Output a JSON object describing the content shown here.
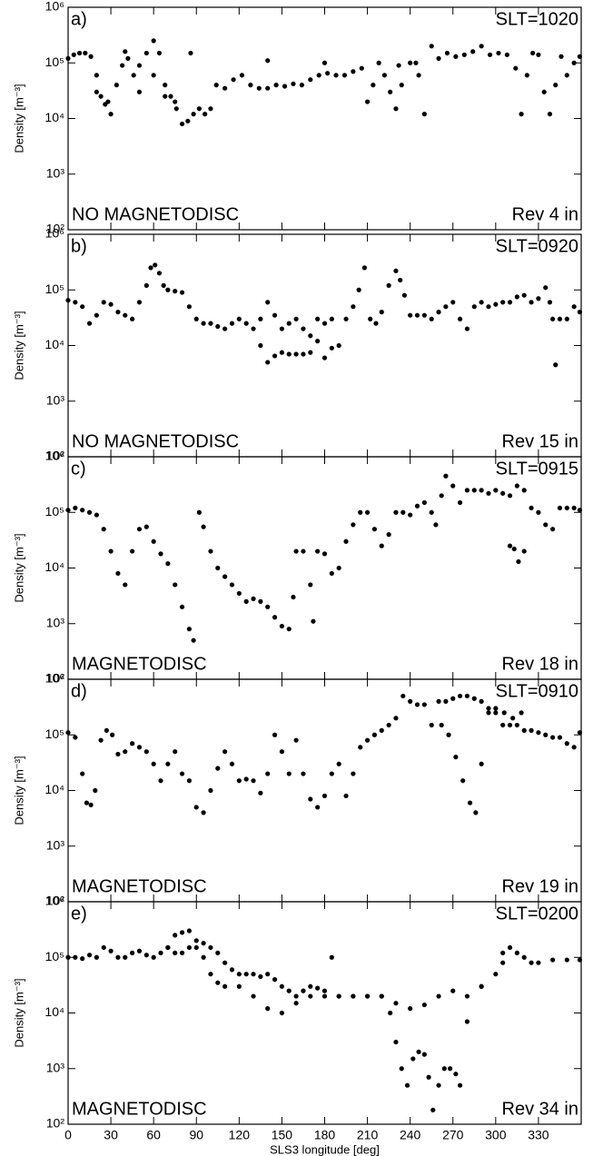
{
  "chart_data": [
    {
      "type": "scatter",
      "panel_label": "a)",
      "slt": "SLT=1020",
      "disc_label": "NO MAGNETODISC",
      "rev_label": "Rev 4 in",
      "ylabel": "Density [m⁻³]",
      "color": "#000000",
      "log_scale": true,
      "xlim": [
        0,
        360
      ],
      "xticks": [
        0,
        30,
        60,
        90,
        120,
        150,
        180,
        210,
        240,
        270,
        300,
        330
      ],
      "ylim": [
        100,
        1000000
      ],
      "yticks": [
        {
          "value": 100,
          "label": "10²"
        },
        {
          "value": 1000,
          "label": "10³"
        },
        {
          "value": 10000,
          "label": "10⁴"
        },
        {
          "value": 100000,
          "label": "10⁵"
        },
        {
          "value": 1000000,
          "label": "10⁶"
        }
      ],
      "x": [
        0,
        4,
        8,
        12,
        16,
        20,
        23,
        26,
        30,
        34,
        38,
        42,
        46,
        50,
        55,
        60,
        64,
        68,
        72,
        76,
        80,
        84,
        88,
        92,
        96,
        100,
        104,
        110,
        116,
        122,
        128,
        134,
        140,
        146,
        152,
        158,
        164,
        170,
        176,
        182,
        188,
        194,
        200,
        206,
        210,
        214,
        218,
        222,
        226,
        230,
        234,
        240,
        246,
        250,
        255,
        260,
        266,
        272,
        278,
        284,
        290,
        296,
        302,
        308,
        314,
        318,
        322,
        326,
        330,
        334,
        338,
        342,
        346,
        350,
        355,
        359,
        20,
        28,
        40,
        50,
        60,
        68,
        75,
        86,
        140,
        180,
        232,
        244
      ],
      "values": [
        120000,
        140000,
        150000,
        150000,
        130000,
        60000,
        25000,
        18000,
        12000,
        40000,
        90000,
        120000,
        60000,
        30000,
        150000,
        250000,
        150000,
        40000,
        25000,
        15000,
        8000,
        9000,
        12000,
        15000,
        12000,
        15000,
        40000,
        35000,
        50000,
        60000,
        40000,
        35000,
        35000,
        40000,
        38000,
        42000,
        40000,
        50000,
        60000,
        65000,
        60000,
        60000,
        70000,
        80000,
        20000,
        40000,
        100000,
        60000,
        30000,
        15000,
        40000,
        100000,
        60000,
        12000,
        200000,
        120000,
        150000,
        130000,
        140000,
        160000,
        200000,
        140000,
        150000,
        140000,
        80000,
        12000,
        60000,
        150000,
        140000,
        30000,
        12000,
        40000,
        130000,
        60000,
        100000,
        130000,
        30000,
        20000,
        160000,
        90000,
        60000,
        25000,
        20000,
        150000,
        110000,
        100000,
        90000,
        100000
      ]
    },
    {
      "type": "scatter",
      "panel_label": "b)",
      "slt": "SLT=0920",
      "disc_label": "NO MAGNETODISC",
      "rev_label": "Rev 15 in",
      "ylabel": "Density [m⁻³]",
      "color": "#000000",
      "log_scale": true,
      "xlim": [
        0,
        360
      ],
      "xticks": [
        0,
        30,
        60,
        90,
        120,
        150,
        180,
        210,
        240,
        270,
        300,
        330
      ],
      "ylim": [
        100,
        1000000
      ],
      "yticks": [
        {
          "value": 100,
          "label": "10²"
        },
        {
          "value": 1000,
          "label": "10³"
        },
        {
          "value": 10000,
          "label": "10⁴"
        },
        {
          "value": 100000,
          "label": "10⁵"
        },
        {
          "value": 1000000,
          "label": "10⁶"
        }
      ],
      "x": [
        0,
        5,
        10,
        15,
        20,
        25,
        30,
        35,
        40,
        45,
        50,
        55,
        58,
        61,
        64,
        67,
        70,
        75,
        80,
        85,
        90,
        95,
        100,
        105,
        110,
        115,
        120,
        125,
        130,
        135,
        140,
        145,
        150,
        155,
        160,
        165,
        170,
        175,
        180,
        185,
        190,
        195,
        200,
        204,
        208,
        212,
        216,
        220,
        225,
        230,
        233,
        236,
        240,
        245,
        250,
        255,
        260,
        265,
        270,
        275,
        280,
        285,
        290,
        295,
        300,
        305,
        310,
        315,
        320,
        325,
        330,
        335,
        338,
        340,
        342,
        345,
        350,
        355,
        359,
        135,
        140,
        145,
        150,
        155,
        160,
        165,
        170,
        175,
        180,
        185
      ],
      "values": [
        65000,
        60000,
        50000,
        25000,
        35000,
        60000,
        55000,
        40000,
        35000,
        30000,
        60000,
        120000,
        250000,
        280000,
        200000,
        120000,
        100000,
        95000,
        90000,
        50000,
        30000,
        25000,
        25000,
        22000,
        20000,
        25000,
        30000,
        25000,
        20000,
        30000,
        60000,
        35000,
        20000,
        25000,
        30000,
        20000,
        15000,
        12000,
        25000,
        30000,
        10000,
        30000,
        50000,
        100000,
        250000,
        30000,
        25000,
        40000,
        120000,
        220000,
        150000,
        80000,
        35000,
        35000,
        35000,
        30000,
        40000,
        50000,
        60000,
        30000,
        20000,
        50000,
        60000,
        50000,
        55000,
        60000,
        60000,
        75000,
        80000,
        60000,
        70000,
        110000,
        60000,
        30000,
        4500,
        30000,
        30000,
        50000,
        40000,
        10000,
        5000,
        6500,
        7500,
        7000,
        7000,
        7000,
        7500,
        30000,
        6000,
        9000
      ]
    },
    {
      "type": "scatter",
      "panel_label": "c)",
      "slt": "SLT=0915",
      "disc_label": "MAGNETODISC",
      "rev_label": "Rev 18 in",
      "ylabel": "Density [m⁻³]",
      "color": "#000000",
      "log_scale": true,
      "xlim": [
        0,
        360
      ],
      "xticks": [
        0,
        30,
        60,
        90,
        120,
        150,
        180,
        210,
        240,
        270,
        300,
        330
      ],
      "ylim": [
        100,
        1000000
      ],
      "yticks": [
        {
          "value": 100,
          "label": "10²"
        },
        {
          "value": 1000,
          "label": "10³"
        },
        {
          "value": 10000,
          "label": "10⁴"
        },
        {
          "value": 100000,
          "label": "10⁵"
        },
        {
          "value": 1000000,
          "label": "10⁶"
        }
      ],
      "x": [
        0,
        5,
        10,
        15,
        20,
        25,
        30,
        35,
        40,
        45,
        50,
        55,
        60,
        65,
        70,
        75,
        80,
        85,
        88,
        92,
        95,
        100,
        105,
        110,
        115,
        120,
        125,
        130,
        135,
        140,
        145,
        150,
        155,
        158,
        160,
        165,
        170,
        172,
        175,
        180,
        185,
        190,
        195,
        200,
        205,
        210,
        215,
        220,
        225,
        230,
        235,
        240,
        245,
        250,
        255,
        258,
        262,
        265,
        270,
        275,
        280,
        285,
        290,
        295,
        300,
        305,
        310,
        315,
        320,
        325,
        330,
        335,
        340,
        345,
        350,
        355,
        359,
        310,
        313,
        316,
        320
      ],
      "values": [
        110000,
        120000,
        110000,
        100000,
        90000,
        50000,
        20000,
        8000,
        5000,
        20000,
        50000,
        55000,
        30000,
        18000,
        12000,
        5000,
        2000,
        800,
        500,
        100000,
        55000,
        20000,
        10000,
        7000,
        5000,
        3500,
        2500,
        2800,
        2500,
        2000,
        1300,
        900,
        800,
        3000,
        20000,
        20000,
        5000,
        1100,
        20000,
        18000,
        8000,
        10000,
        30000,
        60000,
        100000,
        100000,
        50000,
        25000,
        40000,
        100000,
        100000,
        90000,
        130000,
        150000,
        100000,
        60000,
        200000,
        450000,
        300000,
        150000,
        250000,
        250000,
        250000,
        220000,
        250000,
        220000,
        200000,
        300000,
        250000,
        120000,
        100000,
        60000,
        50000,
        120000,
        120000,
        120000,
        110000,
        25000,
        22000,
        13000,
        20000
      ]
    },
    {
      "type": "scatter",
      "panel_label": "d)",
      "slt": "SLT=0910",
      "disc_label": "MAGNETODISC",
      "rev_label": "Rev 19 in",
      "ylabel": "Density [m⁻³]",
      "color": "#000000",
      "log_scale": true,
      "xlim": [
        0,
        360
      ],
      "xticks": [
        0,
        30,
        60,
        90,
        120,
        150,
        180,
        210,
        240,
        270,
        300,
        330
      ],
      "ylim": [
        100,
        1000000
      ],
      "yticks": [
        {
          "value": 100,
          "label": "10²"
        },
        {
          "value": 1000,
          "label": "10³"
        },
        {
          "value": 10000,
          "label": "10⁴"
        },
        {
          "value": 100000,
          "label": "10⁵"
        },
        {
          "value": 1000000,
          "label": "10⁶"
        }
      ],
      "x": [
        0,
        5,
        10,
        13,
        16,
        19,
        23,
        27,
        31,
        35,
        40,
        45,
        50,
        55,
        60,
        65,
        70,
        75,
        80,
        85,
        90,
        95,
        100,
        105,
        110,
        115,
        120,
        125,
        130,
        135,
        140,
        145,
        150,
        155,
        160,
        165,
        170,
        175,
        180,
        185,
        190,
        195,
        200,
        205,
        210,
        215,
        220,
        225,
        230,
        235,
        240,
        245,
        250,
        255,
        260,
        265,
        270,
        275,
        280,
        285,
        290,
        295,
        300,
        305,
        310,
        315,
        320,
        325,
        330,
        335,
        340,
        345,
        350,
        355,
        359,
        262,
        267,
        272,
        277,
        282,
        286,
        290,
        295,
        300,
        306,
        312,
        318
      ],
      "values": [
        110000,
        90000,
        20000,
        6000,
        5500,
        10000,
        80000,
        120000,
        100000,
        45000,
        50000,
        70000,
        60000,
        50000,
        30000,
        15000,
        30000,
        50000,
        20000,
        15000,
        5000,
        4000,
        10000,
        25000,
        50000,
        30000,
        15000,
        16000,
        15000,
        9000,
        20000,
        100000,
        50000,
        20000,
        80000,
        20000,
        7000,
        5000,
        8000,
        20000,
        30000,
        8000,
        20000,
        60000,
        80000,
        100000,
        120000,
        150000,
        200000,
        500000,
        400000,
        350000,
        350000,
        150000,
        400000,
        400000,
        450000,
        500000,
        500000,
        450000,
        400000,
        250000,
        250000,
        150000,
        150000,
        150000,
        120000,
        120000,
        110000,
        100000,
        90000,
        90000,
        70000,
        60000,
        110000,
        150000,
        100000,
        40000,
        15000,
        6000,
        4000,
        30000,
        300000,
        300000,
        250000,
        200000,
        250000
      ]
    },
    {
      "type": "scatter",
      "panel_label": "e)",
      "slt": "SLT=0200",
      "disc_label": "MAGNETODISC",
      "rev_label": "Rev 34 in",
      "ylabel": "Density [m⁻³]",
      "xlabel": "SLS3 longitude [deg]",
      "color": "#000000",
      "log_scale": true,
      "xlim": [
        0,
        360
      ],
      "xticks": [
        0,
        30,
        60,
        90,
        120,
        150,
        180,
        210,
        240,
        270,
        300,
        330
      ],
      "ylim": [
        100,
        1000000
      ],
      "yticks": [
        {
          "value": 100,
          "label": "10²"
        },
        {
          "value": 1000,
          "label": "10³"
        },
        {
          "value": 10000,
          "label": "10⁴"
        },
        {
          "value": 100000,
          "label": "10⁵"
        },
        {
          "value": 1000000,
          "label": "10⁶"
        }
      ],
      "x": [
        0,
        5,
        10,
        15,
        20,
        25,
        30,
        35,
        40,
        45,
        50,
        55,
        60,
        65,
        70,
        75,
        80,
        85,
        90,
        95,
        100,
        105,
        110,
        115,
        120,
        125,
        130,
        135,
        140,
        145,
        150,
        155,
        160,
        165,
        170,
        175,
        180,
        190,
        200,
        210,
        220,
        230,
        240,
        250,
        260,
        270,
        280,
        290,
        300,
        305,
        310,
        315,
        320,
        325,
        330,
        340,
        350,
        359,
        70,
        75,
        80,
        85,
        90,
        95,
        100,
        105,
        110,
        120,
        130,
        140,
        150,
        160,
        170,
        180,
        190,
        200,
        210,
        220,
        226,
        230,
        234,
        238,
        242,
        246,
        250,
        253,
        256,
        260,
        264,
        268,
        272,
        275,
        185,
        280,
        290,
        305
      ],
      "values": [
        100000,
        100000,
        95000,
        110000,
        100000,
        150000,
        130000,
        100000,
        100000,
        120000,
        130000,
        110000,
        100000,
        120000,
        150000,
        250000,
        280000,
        300000,
        150000,
        180000,
        150000,
        120000,
        80000,
        60000,
        50000,
        50000,
        50000,
        45000,
        50000,
        40000,
        30000,
        25000,
        20000,
        25000,
        30000,
        28000,
        25000,
        20000,
        20000,
        20000,
        20000,
        15000,
        12000,
        14000,
        20000,
        25000,
        20000,
        30000,
        50000,
        80000,
        150000,
        120000,
        100000,
        80000,
        80000,
        90000,
        90000,
        90000,
        150000,
        120000,
        120000,
        150000,
        200000,
        100000,
        50000,
        35000,
        30000,
        30000,
        20000,
        12000,
        10000,
        15000,
        20000,
        20000,
        20000,
        20000,
        20000,
        20000,
        10000,
        3000,
        1000,
        500,
        1500,
        2000,
        1800,
        700,
        180,
        500,
        1000,
        1000,
        800,
        500,
        100000,
        7000,
        30000,
        120000
      ]
    }
  ]
}
